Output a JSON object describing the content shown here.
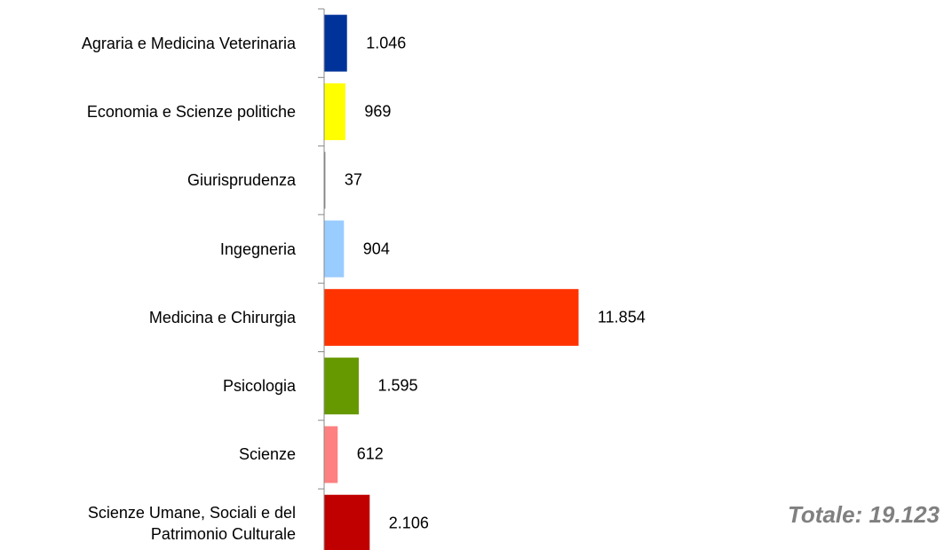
{
  "chart_data": {
    "type": "barh",
    "categories": [
      "Agraria e Medicina Veterinaria",
      "Economia e Scienze politiche",
      "Giurisprudenza",
      "Ingegneria",
      "Medicina e Chirurgia",
      "Psicologia",
      "Scienze",
      "Scienze Umane, Sociali e del\nPatrimonio Culturale"
    ],
    "values": [
      1046,
      969,
      37,
      904,
      11854,
      1595,
      612,
      2106
    ],
    "value_labels": [
      "1.046",
      "969",
      "37",
      "904",
      "11.854",
      "1.595",
      "612",
      "2.106"
    ],
    "colors": [
      "#003399",
      "#ffff00",
      "#808080",
      "#99ccff",
      "#ff3300",
      "#669900",
      "#ff8080",
      "#c00000"
    ],
    "annotation": "Totale: 19.123"
  }
}
